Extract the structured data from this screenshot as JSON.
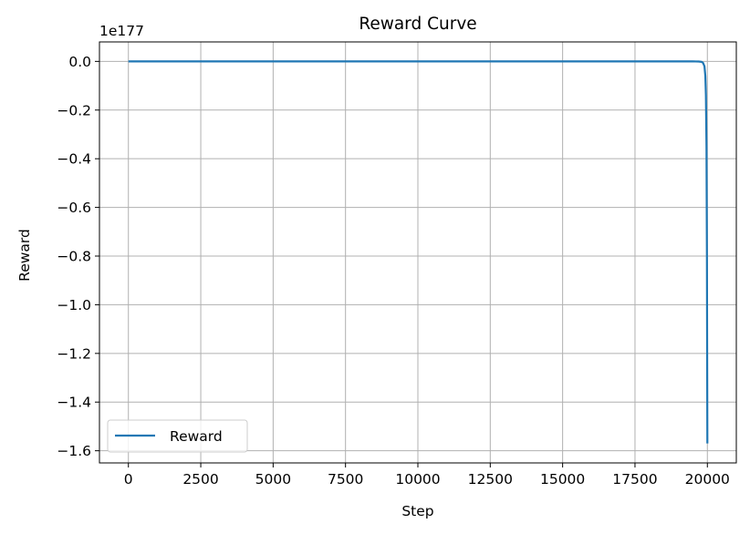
{
  "chart_data": {
    "type": "line",
    "title": "Reward Curve",
    "xlabel": "Step",
    "ylabel": "Reward",
    "y_offset_label": "1e177",
    "xlim": [
      -1000,
      21000
    ],
    "ylim": [
      -1.65,
      0.08
    ],
    "x_ticks": [
      0,
      2500,
      5000,
      7500,
      10000,
      12500,
      15000,
      17500,
      20000
    ],
    "y_ticks": [
      0.0,
      -0.2,
      -0.4,
      -0.6,
      -0.8,
      -1.0,
      -1.2,
      -1.4,
      -1.6
    ],
    "x_tick_labels": [
      "0",
      "2500",
      "5000",
      "7500",
      "10000",
      "12500",
      "15000",
      "17500",
      "20000"
    ],
    "y_tick_labels": [
      "0.0",
      "−0.2",
      "−0.4",
      "−0.6",
      "−0.8",
      "−1.0",
      "−1.2",
      "−1.4",
      "−1.6"
    ],
    "grid": true,
    "legend_position": "lower-left",
    "series": [
      {
        "name": "Reward",
        "color": "#1f77b4",
        "x": [
          0,
          19000,
          19500,
          19700,
          19800,
          19850,
          19900,
          19930,
          19950,
          19970,
          19985,
          20000
        ],
        "y": [
          0,
          0,
          0,
          -0.0005,
          -0.002,
          -0.006,
          -0.02,
          -0.06,
          -0.14,
          -0.35,
          -0.8,
          -1.57
        ]
      }
    ]
  }
}
